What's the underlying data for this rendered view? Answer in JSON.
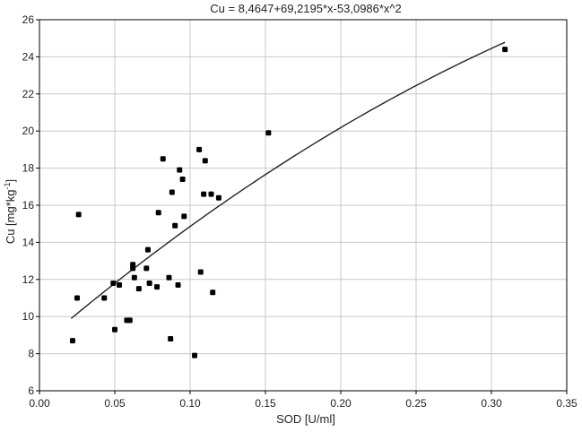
{
  "chart_data": {
    "type": "scatter",
    "title": "Cu = 8,4647+69,2195*x-53,0986*x^2",
    "xlabel": "SOD [U/ml]",
    "ylabel_main": "Cu [mg*kg",
    "ylabel_sup": "-1",
    "ylabel_end": "]",
    "xlim": [
      0.0,
      0.35
    ],
    "ylim": [
      6,
      26
    ],
    "xticks": [
      0.0,
      0.05,
      0.1,
      0.15,
      0.2,
      0.25,
      0.3,
      0.35
    ],
    "xtick_labels": [
      "0.00",
      "0.05",
      "0.10",
      "0.15",
      "0.20",
      "0.25",
      "0.30",
      "0.35"
    ],
    "yticks": [
      6,
      8,
      10,
      12,
      14,
      16,
      18,
      20,
      22,
      24,
      26
    ],
    "ytick_labels": [
      "6",
      "8",
      "10",
      "12",
      "14",
      "16",
      "18",
      "20",
      "22",
      "24",
      "26"
    ],
    "grid": true,
    "points": [
      {
        "x": 0.022,
        "y": 8.7
      },
      {
        "x": 0.025,
        "y": 11.0
      },
      {
        "x": 0.026,
        "y": 15.5
      },
      {
        "x": 0.043,
        "y": 11.0
      },
      {
        "x": 0.049,
        "y": 11.8
      },
      {
        "x": 0.05,
        "y": 9.3
      },
      {
        "x": 0.053,
        "y": 11.7
      },
      {
        "x": 0.058,
        "y": 9.8
      },
      {
        "x": 0.06,
        "y": 9.8
      },
      {
        "x": 0.062,
        "y": 12.8
      },
      {
        "x": 0.062,
        "y": 12.6
      },
      {
        "x": 0.063,
        "y": 12.1
      },
      {
        "x": 0.066,
        "y": 11.5
      },
      {
        "x": 0.071,
        "y": 12.6
      },
      {
        "x": 0.072,
        "y": 13.6
      },
      {
        "x": 0.073,
        "y": 11.8
      },
      {
        "x": 0.078,
        "y": 11.6
      },
      {
        "x": 0.079,
        "y": 15.6
      },
      {
        "x": 0.082,
        "y": 18.5
      },
      {
        "x": 0.086,
        "y": 12.1
      },
      {
        "x": 0.087,
        "y": 8.8
      },
      {
        "x": 0.088,
        "y": 16.7
      },
      {
        "x": 0.09,
        "y": 14.9
      },
      {
        "x": 0.092,
        "y": 11.7
      },
      {
        "x": 0.093,
        "y": 17.9
      },
      {
        "x": 0.095,
        "y": 17.4
      },
      {
        "x": 0.096,
        "y": 15.4
      },
      {
        "x": 0.103,
        "y": 7.9
      },
      {
        "x": 0.106,
        "y": 19.0
      },
      {
        "x": 0.107,
        "y": 12.4
      },
      {
        "x": 0.109,
        "y": 16.6
      },
      {
        "x": 0.11,
        "y": 18.4
      },
      {
        "x": 0.114,
        "y": 16.6
      },
      {
        "x": 0.115,
        "y": 11.3
      },
      {
        "x": 0.119,
        "y": 16.4
      },
      {
        "x": 0.152,
        "y": 19.9
      },
      {
        "x": 0.309,
        "y": 24.4
      }
    ],
    "fit": {
      "a": 8.4647,
      "b": 69.2195,
      "c": -53.0986,
      "x_from": 0.021,
      "x_to": 0.309
    },
    "colors": {
      "points": "#000000",
      "line": "#222222",
      "grid": "#c8c8c8",
      "frame": "#000000"
    }
  }
}
